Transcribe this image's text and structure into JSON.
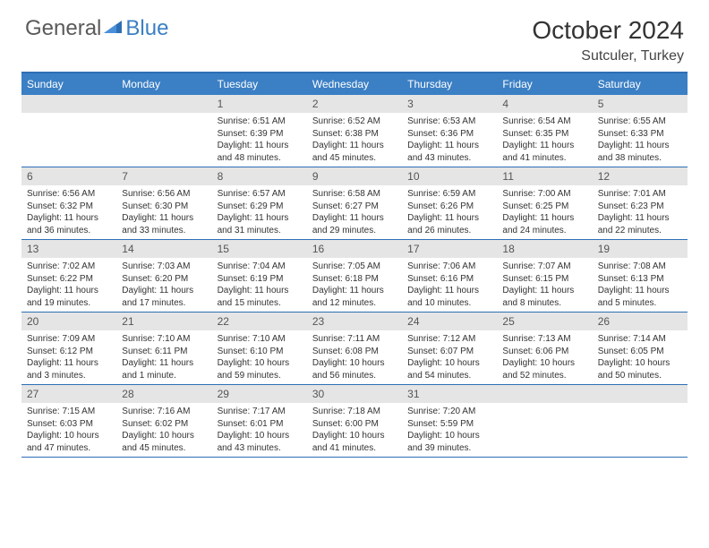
{
  "brand": {
    "part1": "General",
    "part2": "Blue",
    "text_color": "#5a5a5a",
    "accent_color": "#3b7fc4"
  },
  "title": "October 2024",
  "location": "Sutculer, Turkey",
  "colors": {
    "header_bg": "#3b7fc4",
    "border": "#2d6fb5",
    "daynum_bg": "#e5e5e5",
    "text": "#333333"
  },
  "day_names": [
    "Sunday",
    "Monday",
    "Tuesday",
    "Wednesday",
    "Thursday",
    "Friday",
    "Saturday"
  ],
  "weeks": [
    [
      {
        "n": "",
        "sr": "",
        "ss": "",
        "dl": ""
      },
      {
        "n": "",
        "sr": "",
        "ss": "",
        "dl": ""
      },
      {
        "n": "1",
        "sr": "6:51 AM",
        "ss": "6:39 PM",
        "dl": "11 hours and 48 minutes."
      },
      {
        "n": "2",
        "sr": "6:52 AM",
        "ss": "6:38 PM",
        "dl": "11 hours and 45 minutes."
      },
      {
        "n": "3",
        "sr": "6:53 AM",
        "ss": "6:36 PM",
        "dl": "11 hours and 43 minutes."
      },
      {
        "n": "4",
        "sr": "6:54 AM",
        "ss": "6:35 PM",
        "dl": "11 hours and 41 minutes."
      },
      {
        "n": "5",
        "sr": "6:55 AM",
        "ss": "6:33 PM",
        "dl": "11 hours and 38 minutes."
      }
    ],
    [
      {
        "n": "6",
        "sr": "6:56 AM",
        "ss": "6:32 PM",
        "dl": "11 hours and 36 minutes."
      },
      {
        "n": "7",
        "sr": "6:56 AM",
        "ss": "6:30 PM",
        "dl": "11 hours and 33 minutes."
      },
      {
        "n": "8",
        "sr": "6:57 AM",
        "ss": "6:29 PM",
        "dl": "11 hours and 31 minutes."
      },
      {
        "n": "9",
        "sr": "6:58 AM",
        "ss": "6:27 PM",
        "dl": "11 hours and 29 minutes."
      },
      {
        "n": "10",
        "sr": "6:59 AM",
        "ss": "6:26 PM",
        "dl": "11 hours and 26 minutes."
      },
      {
        "n": "11",
        "sr": "7:00 AM",
        "ss": "6:25 PM",
        "dl": "11 hours and 24 minutes."
      },
      {
        "n": "12",
        "sr": "7:01 AM",
        "ss": "6:23 PM",
        "dl": "11 hours and 22 minutes."
      }
    ],
    [
      {
        "n": "13",
        "sr": "7:02 AM",
        "ss": "6:22 PM",
        "dl": "11 hours and 19 minutes."
      },
      {
        "n": "14",
        "sr": "7:03 AM",
        "ss": "6:20 PM",
        "dl": "11 hours and 17 minutes."
      },
      {
        "n": "15",
        "sr": "7:04 AM",
        "ss": "6:19 PM",
        "dl": "11 hours and 15 minutes."
      },
      {
        "n": "16",
        "sr": "7:05 AM",
        "ss": "6:18 PM",
        "dl": "11 hours and 12 minutes."
      },
      {
        "n": "17",
        "sr": "7:06 AM",
        "ss": "6:16 PM",
        "dl": "11 hours and 10 minutes."
      },
      {
        "n": "18",
        "sr": "7:07 AM",
        "ss": "6:15 PM",
        "dl": "11 hours and 8 minutes."
      },
      {
        "n": "19",
        "sr": "7:08 AM",
        "ss": "6:13 PM",
        "dl": "11 hours and 5 minutes."
      }
    ],
    [
      {
        "n": "20",
        "sr": "7:09 AM",
        "ss": "6:12 PM",
        "dl": "11 hours and 3 minutes."
      },
      {
        "n": "21",
        "sr": "7:10 AM",
        "ss": "6:11 PM",
        "dl": "11 hours and 1 minute."
      },
      {
        "n": "22",
        "sr": "7:10 AM",
        "ss": "6:10 PM",
        "dl": "10 hours and 59 minutes."
      },
      {
        "n": "23",
        "sr": "7:11 AM",
        "ss": "6:08 PM",
        "dl": "10 hours and 56 minutes."
      },
      {
        "n": "24",
        "sr": "7:12 AM",
        "ss": "6:07 PM",
        "dl": "10 hours and 54 minutes."
      },
      {
        "n": "25",
        "sr": "7:13 AM",
        "ss": "6:06 PM",
        "dl": "10 hours and 52 minutes."
      },
      {
        "n": "26",
        "sr": "7:14 AM",
        "ss": "6:05 PM",
        "dl": "10 hours and 50 minutes."
      }
    ],
    [
      {
        "n": "27",
        "sr": "7:15 AM",
        "ss": "6:03 PM",
        "dl": "10 hours and 47 minutes."
      },
      {
        "n": "28",
        "sr": "7:16 AM",
        "ss": "6:02 PM",
        "dl": "10 hours and 45 minutes."
      },
      {
        "n": "29",
        "sr": "7:17 AM",
        "ss": "6:01 PM",
        "dl": "10 hours and 43 minutes."
      },
      {
        "n": "30",
        "sr": "7:18 AM",
        "ss": "6:00 PM",
        "dl": "10 hours and 41 minutes."
      },
      {
        "n": "31",
        "sr": "7:20 AM",
        "ss": "5:59 PM",
        "dl": "10 hours and 39 minutes."
      },
      {
        "n": "",
        "sr": "",
        "ss": "",
        "dl": ""
      },
      {
        "n": "",
        "sr": "",
        "ss": "",
        "dl": ""
      }
    ]
  ]
}
